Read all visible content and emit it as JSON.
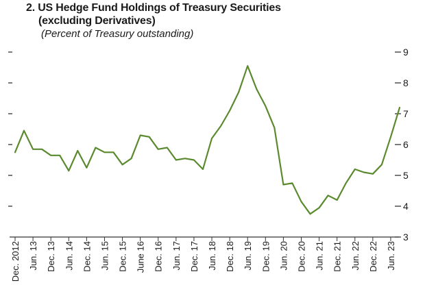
{
  "chart_data": {
    "type": "line",
    "title": "2. US Hedge Fund Holdings of Treasury Securities",
    "title_line2": "(excluding Derivatives)",
    "subtitle": "(Percent of Treasury outstanding)",
    "ylim": [
      3,
      9
    ],
    "y_ticks": [
      3,
      4,
      5,
      6,
      7,
      8,
      9
    ],
    "grid": false,
    "color": "#5a8a2e",
    "x_tick_labels": [
      "Dec. 2012",
      "Jun. 13",
      "Dec. 13",
      "Jun. 14",
      "Dec. 14",
      "Jun. 15",
      "Dec. 15",
      "June 16",
      "Dec. 16",
      "Jun. 17",
      "Dec. 17",
      "Jun. 18",
      "Dec. 18",
      "Jun. 19",
      "Dec. 19",
      "Jun. 20",
      "Dec. 20",
      "Jun. 21",
      "Dec. 21",
      "Jun. 22",
      "Dec. 22",
      "Jun. 23"
    ],
    "x": [
      "Dec. 2012",
      "Mar. 13",
      "Jun. 13",
      "Sep. 13",
      "Dec. 13",
      "Mar. 14",
      "Jun. 14",
      "Sep. 14",
      "Dec. 14",
      "Mar. 15",
      "Jun. 15",
      "Sep. 15",
      "Dec. 15",
      "Mar. 16",
      "June 16",
      "Sep. 16",
      "Dec. 16",
      "Mar. 17",
      "Jun. 17",
      "Sep. 17",
      "Dec. 17",
      "Mar. 18",
      "Jun. 18",
      "Sep. 18",
      "Dec. 18",
      "Mar. 19",
      "Jun. 19",
      "Sep. 19",
      "Dec. 19",
      "Mar. 20",
      "Jun. 20",
      "Sep. 20",
      "Dec. 20",
      "Mar. 21",
      "Jun. 21",
      "Sep. 21",
      "Dec. 21",
      "Mar. 22",
      "Jun. 22",
      "Sep. 22",
      "Dec. 22",
      "Mar. 23",
      "Jun. 23",
      "Sep. 23"
    ],
    "series": [
      {
        "values": [
          5.75,
          6.45,
          5.85,
          5.85,
          5.65,
          5.65,
          5.15,
          5.8,
          5.25,
          5.9,
          5.75,
          5.75,
          5.35,
          5.55,
          6.3,
          6.25,
          5.85,
          5.9,
          5.5,
          5.55,
          5.5,
          5.2,
          6.2,
          6.6,
          7.1,
          7.7,
          8.55,
          7.8,
          7.25,
          6.55,
          4.7,
          4.75,
          4.15,
          3.75,
          3.95,
          4.35,
          4.2,
          4.75,
          5.2,
          5.1,
          5.05,
          5.35,
          6.25,
          7.2
        ]
      }
    ]
  }
}
